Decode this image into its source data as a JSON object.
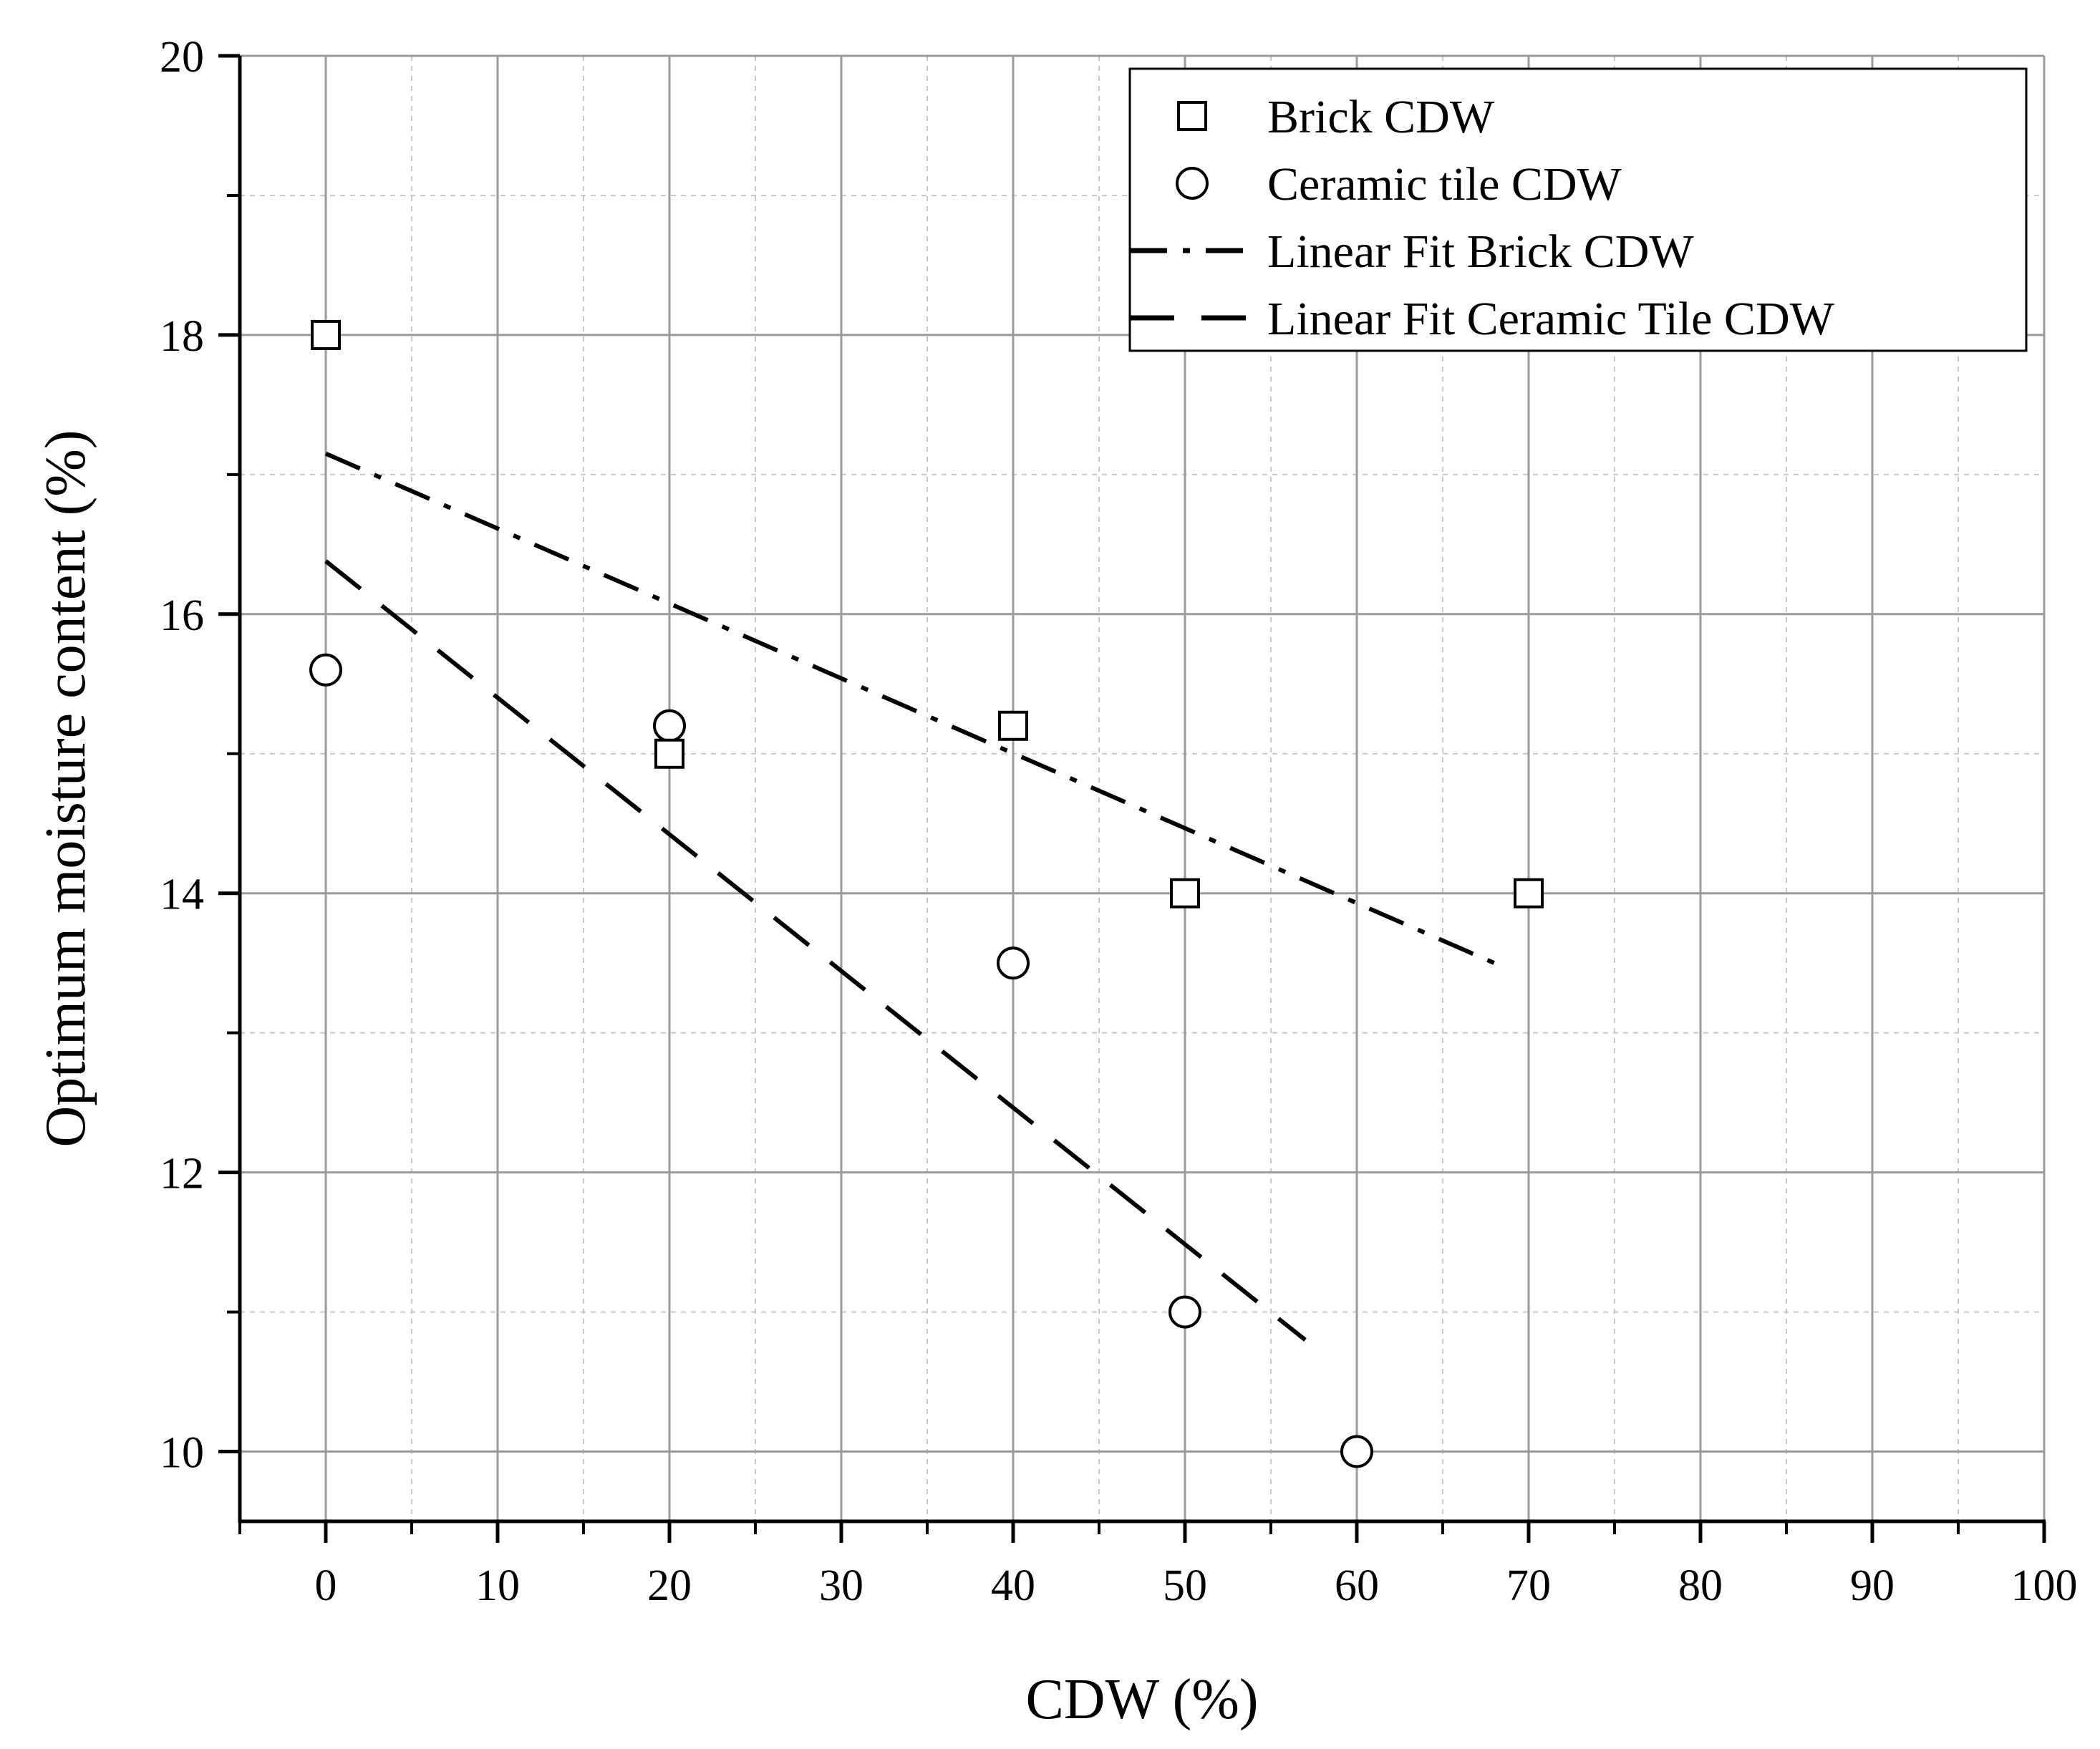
{
  "chart_data": {
    "type": "scatter",
    "title": "",
    "xlabel": "CDW (%)",
    "ylabel": "Optimum moisture content (%)",
    "xlim": [
      -5,
      100
    ],
    "ylim": [
      9.5,
      20
    ],
    "x_major_ticks": [
      0,
      10,
      20,
      30,
      40,
      50,
      60,
      70,
      80,
      90,
      100
    ],
    "x_tick_labels": [
      "0",
      "10",
      "20",
      "30",
      "40",
      "50",
      "60",
      "70",
      "80",
      "90",
      "100"
    ],
    "y_major_ticks": [
      10,
      12,
      14,
      16,
      18,
      20
    ],
    "y_tick_labels": [
      "10",
      "12",
      "14",
      "16",
      "18",
      "20"
    ],
    "grid": true,
    "legend_position": "top-right",
    "series": [
      {
        "name": "Brick CDW",
        "marker": "square",
        "x": [
          0,
          20,
          40,
          50,
          70
        ],
        "y": [
          18.0,
          15.0,
          15.2,
          14.0,
          14.0
        ]
      },
      {
        "name": "Ceramic tile CDW",
        "marker": "circle",
        "x": [
          0,
          20,
          40,
          50,
          60
        ],
        "y": [
          15.6,
          15.2,
          13.5,
          11.0,
          10.0
        ]
      }
    ],
    "fits": [
      {
        "name": "Linear Fit Brick CDW",
        "style": "dash-dot",
        "x": [
          0,
          68
        ],
        "y": [
          17.15,
          13.5
        ]
      },
      {
        "name": "Linear Fit Ceramic Tile CDW",
        "style": "dash",
        "x": [
          0,
          57
        ],
        "y": [
          16.38,
          10.8
        ]
      }
    ]
  }
}
